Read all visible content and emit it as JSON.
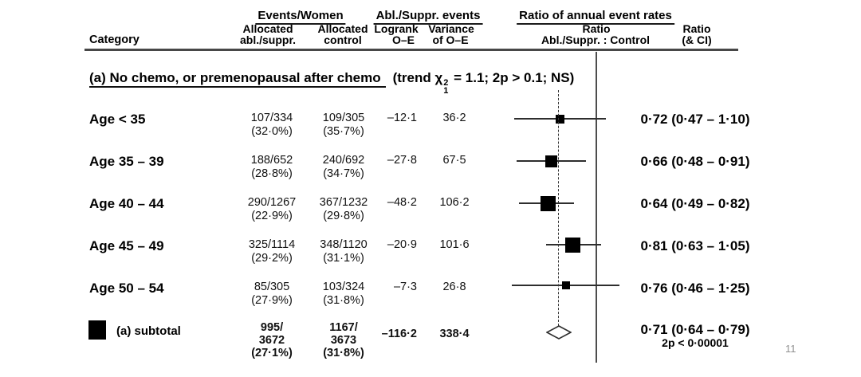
{
  "page_number": "11",
  "colors": {
    "text": "#000000",
    "rule": "#474747",
    "page_number": "#909090",
    "marker": "#000000"
  },
  "header": {
    "category": "Category",
    "group_events_women": "Events/Women",
    "group_abl_suppr_events": "Abl./Suppr. events",
    "group_ratio_rates": "Ratio of annual event rates",
    "col_abl_line1": "Allocated",
    "col_abl_line2": "abl./suppr.",
    "col_ctrl_line1": "Allocated",
    "col_ctrl_line2": "control",
    "col_logrank_line1": "Logrank",
    "col_logrank_line2": "O–E",
    "col_var_line1": "Variance",
    "col_var_line2": "of O–E",
    "col_ratio_mid_line1": "Ratio",
    "col_ratio_mid_line2": "Abl./Suppr. : Control",
    "col_ratio_right_line1": "Ratio",
    "col_ratio_right_line2": "(& CI)"
  },
  "section": {
    "title": "(a) No chemo, or premenopausal after chemo",
    "trend_prefix": "(trend ",
    "chi": "χ",
    "chi_sup": "2",
    "chi_sub": "1",
    "trend_suffix": " = 1.1; 2p > 0.1; NS)"
  },
  "rows": [
    {
      "label": "Age < 35",
      "abl": "107/334",
      "abl_pct": "(32·0%)",
      "ctrl": "109/305",
      "ctrl_pct": "(35·7%)",
      "oe": "–12·1",
      "variance": "36·2",
      "ratio": "0·72 (0·47 – 1·10)"
    },
    {
      "label": "Age 35 – 39",
      "abl": "188/652",
      "abl_pct": "(28·8%)",
      "ctrl": "240/692",
      "ctrl_pct": "(34·7%)",
      "oe": "–27·8",
      "variance": "67·5",
      "ratio": "0·66 (0·48 – 0·91)"
    },
    {
      "label": "Age 40 – 44",
      "abl": "290/1267",
      "abl_pct": "(22·9%)",
      "ctrl": "367/1232",
      "ctrl_pct": "(29·8%)",
      "oe": "–48·2",
      "variance": "106·2",
      "ratio": "0·64 (0·49 – 0·82)"
    },
    {
      "label": "Age 45 – 49",
      "abl": "325/1114",
      "abl_pct": "(29·2%)",
      "ctrl": "348/1120",
      "ctrl_pct": "(31·1%)",
      "oe": "–20·9",
      "variance": "101·6",
      "ratio": "0·81 (0·63 – 1·05)"
    },
    {
      "label": "Age 50 – 54",
      "abl": "85/305",
      "abl_pct": "(27·9%)",
      "ctrl": "103/324",
      "ctrl_pct": "(31·8%)",
      "oe": "–7·3",
      "variance": "26·8",
      "ratio": "0·76 (0·46 – 1·25)"
    }
  ],
  "subtotal": {
    "label": "(a) subtotal",
    "abl_line1": "995/",
    "abl_line2": "3672",
    "abl_line3": "(27·1%)",
    "ctrl_line1": "1167/",
    "ctrl_line2": "3673",
    "ctrl_line3": "(31·8%)",
    "oe": "–116·2",
    "variance": "338·4",
    "ratio": "0·71 (0·64 – 0·79)",
    "p_value": "2p < 0·00001"
  },
  "chart_data": {
    "type": "forest",
    "x_scale": "log",
    "reference_line": 1.0,
    "comparison": "Abl./Suppr. : Control",
    "rows": [
      {
        "label": "Age < 35",
        "ratio": 0.72,
        "ci_low": 0.47,
        "ci_high": 1.1,
        "logrank_oe": -12.1,
        "variance": 36.2
      },
      {
        "label": "Age 35 – 39",
        "ratio": 0.66,
        "ci_low": 0.48,
        "ci_high": 0.91,
        "logrank_oe": -27.8,
        "variance": 67.5
      },
      {
        "label": "Age 40 – 44",
        "ratio": 0.64,
        "ci_low": 0.49,
        "ci_high": 0.82,
        "logrank_oe": -48.2,
        "variance": 106.2
      },
      {
        "label": "Age 45 – 49",
        "ratio": 0.81,
        "ci_low": 0.63,
        "ci_high": 1.05,
        "logrank_oe": -20.9,
        "variance": 101.6
      },
      {
        "label": "Age 50 – 54",
        "ratio": 0.76,
        "ci_low": 0.46,
        "ci_high": 1.25,
        "logrank_oe": -7.3,
        "variance": 26.8
      }
    ],
    "subtotal": {
      "label": "(a) subtotal",
      "ratio": 0.71,
      "ci_low": 0.64,
      "ci_high": 0.79,
      "logrank_oe": -116.2,
      "variance": 338.4,
      "p": "2p < 0·00001"
    }
  }
}
